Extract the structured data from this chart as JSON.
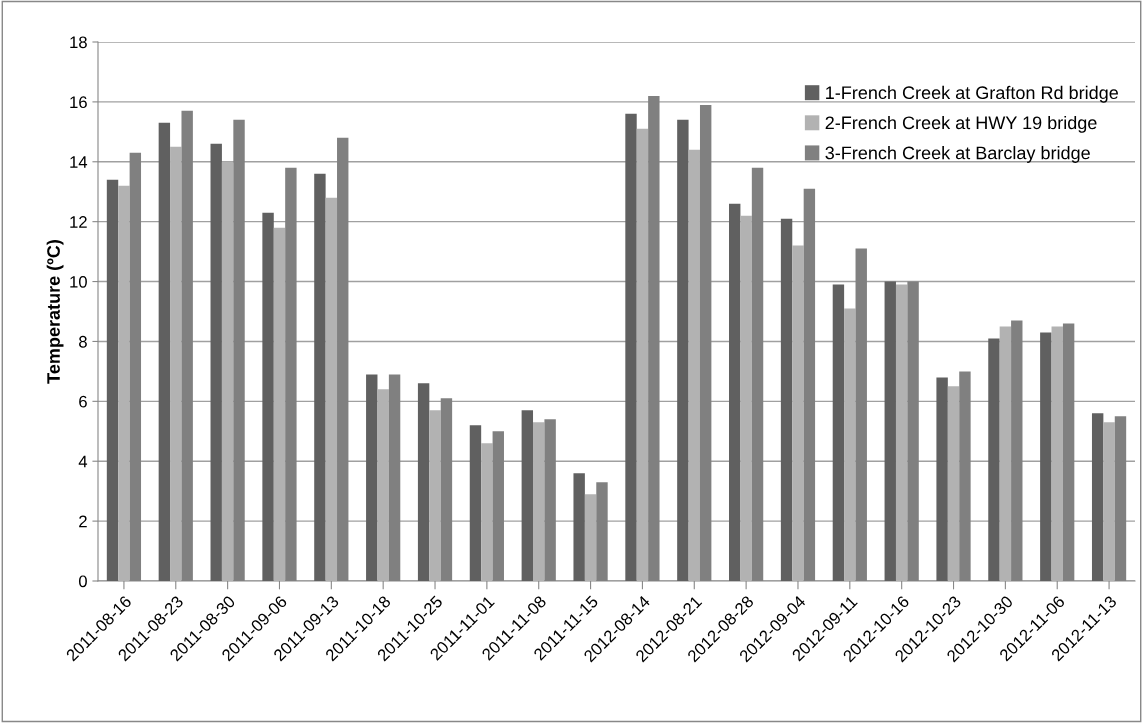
{
  "chart_data": {
    "type": "bar",
    "ylabel": "Temperature (ºC)",
    "categories": [
      "2011-08-16",
      "2011-08-23",
      "2011-08-30",
      "2011-09-06",
      "2011-09-13",
      "2011-10-18",
      "2011-10-25",
      "2011-11-01",
      "2011-11-08",
      "2011-11-15",
      "2012-08-14",
      "2012-08-21",
      "2012-08-28",
      "2012-09-04",
      "2012-09-11",
      "2012-10-16",
      "2012-10-23",
      "2012-10-30",
      "2012-11-06",
      "2012-11-13"
    ],
    "series": [
      {
        "name": "1-French Creek at Grafton Rd bridge",
        "color": "#606060",
        "values": [
          13.4,
          15.3,
          14.6,
          12.3,
          13.6,
          6.9,
          6.6,
          5.2,
          5.7,
          3.6,
          15.6,
          15.4,
          12.6,
          12.1,
          9.9,
          10.0,
          6.8,
          8.1,
          8.3,
          5.6
        ]
      },
      {
        "name": "2-French Creek at HWY 19 bridge",
        "color": "#b2b2b2",
        "values": [
          13.2,
          14.5,
          14.0,
          11.8,
          12.8,
          6.4,
          5.7,
          4.6,
          5.3,
          2.9,
          15.1,
          14.4,
          12.2,
          11.2,
          9.1,
          9.9,
          6.5,
          8.5,
          8.5,
          5.3
        ]
      },
      {
        "name": "3-French Creek at Barclay bridge",
        "color": "#808080",
        "values": [
          14.3,
          15.7,
          15.4,
          13.8,
          14.8,
          6.9,
          6.1,
          5.0,
          5.4,
          3.3,
          16.2,
          15.9,
          13.8,
          13.1,
          11.1,
          10.0,
          7.0,
          8.7,
          8.6,
          5.5
        ]
      }
    ],
    "ylim": [
      0,
      18
    ],
    "yticks": [
      0,
      2,
      4,
      6,
      8,
      10,
      12,
      14,
      16,
      18
    ],
    "grid": "y",
    "legend": "top right"
  }
}
